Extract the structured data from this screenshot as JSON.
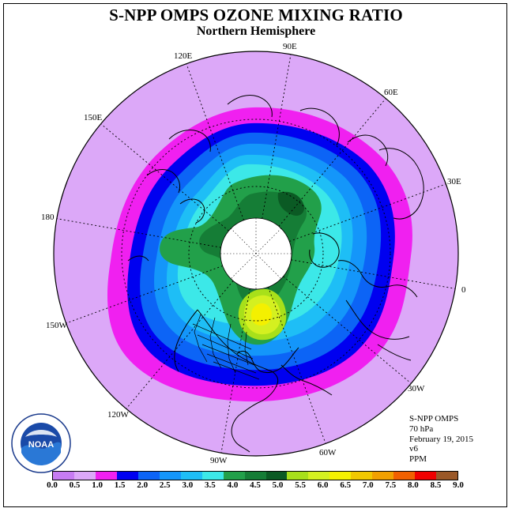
{
  "title": "S-NPP OMPS OZONE MIXING RATIO",
  "subtitle": "Northern Hemisphere",
  "longitude_labels": [
    "0",
    "30E",
    "60E",
    "90E",
    "120E",
    "150E",
    "180",
    "150W",
    "120W",
    "90W",
    "60W",
    "30W"
  ],
  "info": {
    "instrument": "S-NPP OMPS",
    "level": "70 hPa",
    "date": "February 19, 2015",
    "version": "v6",
    "units": "PPM"
  },
  "logo": {
    "text": "NOAA",
    "ring_text": "NATIONAL OCEANIC AND ATMOSPHERIC ADMINISTRATION · U.S. DEPARTMENT OF COMMERCE"
  },
  "colorbar": {
    "ticks": [
      "0.0",
      "0.5",
      "1.0",
      "1.5",
      "2.0",
      "2.5",
      "3.0",
      "3.5",
      "4.0",
      "4.5",
      "5.0",
      "5.5",
      "6.0",
      "6.5",
      "7.0",
      "7.5",
      "8.0",
      "8.5",
      "9.0"
    ],
    "colors": [
      "#c77cf2",
      "#dca8f8",
      "#f020f0",
      "#0000f0",
      "#0c64f6",
      "#1496fa",
      "#1ebef6",
      "#3ce8e8",
      "#22a04a",
      "#157d36",
      "#0b5a24",
      "#a8e01a",
      "#d4f020",
      "#f4f000",
      "#f0c800",
      "#f0a000",
      "#f06000",
      "#f00000",
      "#9a5828"
    ]
  }
}
